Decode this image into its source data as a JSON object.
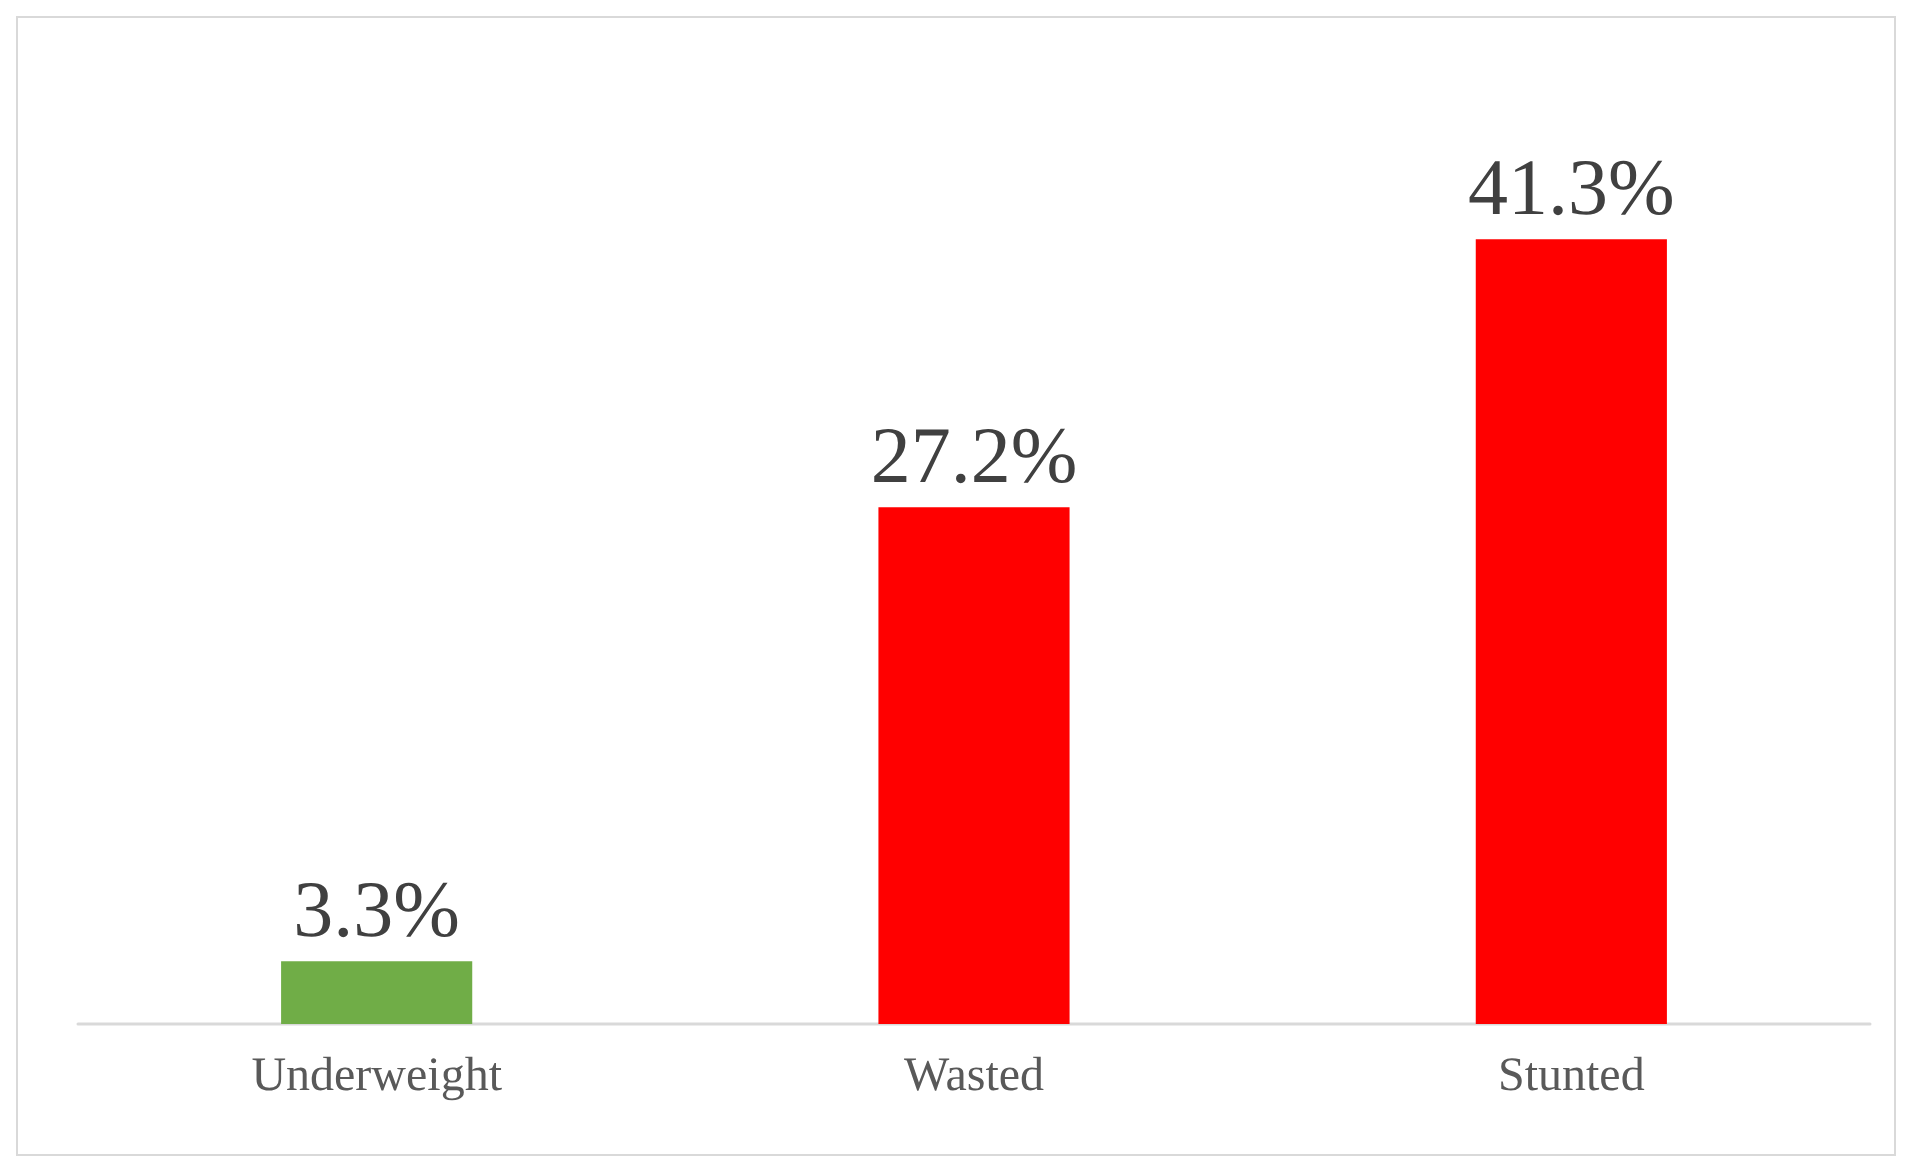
{
  "chart_data": {
    "type": "bar",
    "categories": [
      "Underweight",
      "Wasted",
      "Stunted"
    ],
    "values": [
      3.3,
      27.2,
      41.3
    ],
    "colors": [
      "#70ad47",
      "#ff0000",
      "#ff0000"
    ],
    "value_labels": [
      "3.3%",
      "27.2%",
      "41.3%"
    ]
  }
}
